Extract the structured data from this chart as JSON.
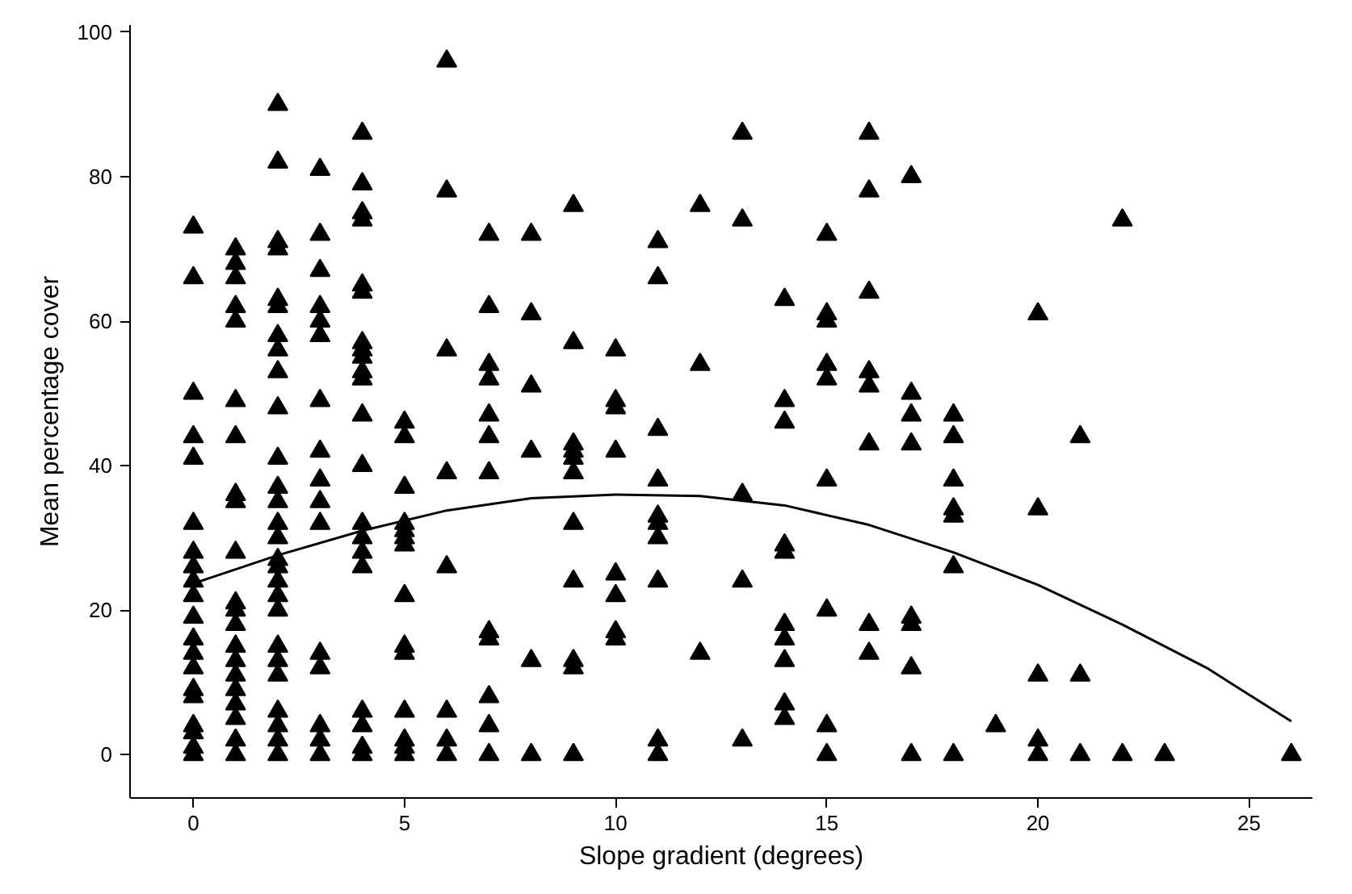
{
  "chart_data": {
    "type": "scatter",
    "xlabel": "Slope gradient (degrees)",
    "ylabel": "Mean percentage cover",
    "xlim": [
      -1.5,
      26.5
    ],
    "ylim": [
      -6,
      101
    ],
    "xticks": [
      0,
      5,
      10,
      15,
      20,
      25
    ],
    "yticks": [
      0,
      20,
      40,
      60,
      80,
      100
    ],
    "grid": false,
    "marker": "triangle",
    "series": [
      {
        "color": "#000000",
        "x": [
          0,
          0,
          0,
          0,
          0,
          0,
          0,
          0,
          0,
          0,
          0,
          0,
          0,
          0,
          0,
          0,
          0,
          0,
          0,
          0,
          1,
          1,
          1,
          1,
          1,
          1,
          1,
          1,
          1,
          1,
          1,
          1,
          1,
          1,
          1,
          1,
          1,
          1,
          1,
          1,
          1,
          2,
          2,
          2,
          2,
          2,
          2,
          2,
          2,
          2,
          2,
          2,
          2,
          2,
          2,
          2,
          2,
          2,
          2,
          2,
          2,
          2,
          2,
          2,
          2,
          2,
          2,
          2,
          3,
          3,
          3,
          3,
          3,
          3,
          3,
          3,
          3,
          3,
          3,
          3,
          3,
          3,
          3,
          3,
          4,
          4,
          4,
          4,
          4,
          4,
          4,
          4,
          4,
          4,
          4,
          4,
          4,
          4,
          4,
          4,
          4,
          4,
          4,
          4,
          4,
          5,
          5,
          5,
          5,
          5,
          5,
          5,
          5,
          5,
          5,
          5,
          5,
          5,
          5,
          6,
          6,
          6,
          6,
          6,
          6,
          6,
          6,
          7,
          7,
          7,
          7,
          7,
          7,
          7,
          7,
          7,
          7,
          7,
          7,
          8,
          8,
          8,
          8,
          8,
          8,
          9,
          9,
          9,
          9,
          9,
          9,
          9,
          9,
          9,
          9,
          9,
          10,
          10,
          10,
          10,
          10,
          10,
          10,
          10,
          11,
          11,
          11,
          11,
          11,
          11,
          11,
          11,
          11,
          11,
          12,
          12,
          12,
          13,
          13,
          13,
          13,
          13,
          14,
          14,
          14,
          14,
          14,
          14,
          14,
          14,
          14,
          14,
          15,
          15,
          15,
          15,
          15,
          15,
          15,
          15,
          15,
          16,
          16,
          16,
          16,
          16,
          16,
          16,
          16,
          17,
          17,
          17,
          17,
          17,
          17,
          17,
          17,
          18,
          18,
          18,
          18,
          18,
          18,
          18,
          19,
          20,
          20,
          20,
          20,
          20,
          21,
          21,
          21,
          22,
          22,
          23,
          26
        ],
        "values": [
          73,
          66,
          50,
          44,
          41,
          32,
          28,
          26,
          24,
          22,
          19,
          16,
          14,
          12,
          9,
          8,
          4,
          3,
          1,
          0,
          70,
          68,
          66,
          62,
          60,
          49,
          44,
          36,
          35,
          28,
          21,
          20,
          18,
          15,
          13,
          11,
          9,
          7,
          5,
          2,
          0,
          90,
          82,
          71,
          70,
          63,
          62,
          58,
          56,
          53,
          48,
          41,
          37,
          35,
          32,
          30,
          27,
          26,
          24,
          22,
          20,
          15,
          13,
          11,
          6,
          4,
          2,
          0,
          81,
          72,
          67,
          62,
          60,
          58,
          49,
          42,
          38,
          35,
          32,
          14,
          12,
          4,
          2,
          0,
          86,
          79,
          75,
          74,
          65,
          64,
          57,
          56,
          55,
          53,
          52,
          47,
          40,
          32,
          30,
          28,
          26,
          6,
          4,
          1,
          0,
          46,
          44,
          37,
          32,
          31,
          30,
          29,
          22,
          15,
          14,
          6,
          2,
          1,
          0,
          96,
          78,
          56,
          39,
          26,
          6,
          2,
          0,
          72,
          62,
          54,
          52,
          47,
          44,
          39,
          17,
          16,
          8,
          4,
          0,
          72,
          61,
          51,
          42,
          13,
          0,
          76,
          57,
          43,
          42,
          41,
          39,
          32,
          24,
          13,
          12,
          0,
          56,
          49,
          48,
          42,
          25,
          22,
          17,
          16,
          71,
          66,
          45,
          38,
          33,
          32,
          30,
          24,
          2,
          0,
          76,
          54,
          14,
          86,
          74,
          36,
          24,
          2,
          63,
          49,
          46,
          29,
          28,
          18,
          16,
          13,
          7,
          5,
          72,
          61,
          60,
          54,
          52,
          38,
          20,
          4,
          0,
          86,
          78,
          64,
          53,
          51,
          43,
          18,
          14,
          80,
          50,
          47,
          43,
          19,
          18,
          12,
          0,
          47,
          44,
          38,
          34,
          33,
          26,
          0,
          4,
          61,
          34,
          11,
          2,
          0,
          44,
          11,
          0,
          74,
          0,
          0,
          0
        ]
      },
      {
        "type": "line",
        "color": "#000000",
        "marker": "none",
        "x": [
          0,
          2,
          4,
          6,
          8,
          10,
          12,
          14,
          16,
          18,
          20,
          22,
          24,
          26
        ],
        "values": [
          23.7,
          27.6,
          31,
          33.8,
          35.5,
          36,
          35.8,
          34.5,
          31.8,
          28,
          23.5,
          18,
          12,
          4.6
        ]
      }
    ]
  }
}
